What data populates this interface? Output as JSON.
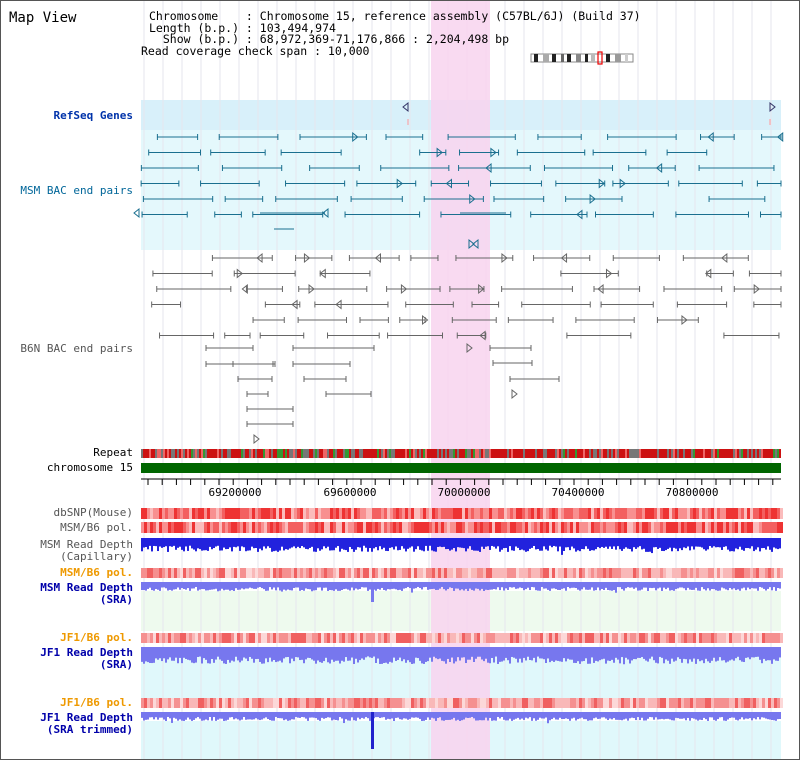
{
  "title": "Map View",
  "info": {
    "chromosome": "Chromosome    : Chromosome 15, reference assembly (C57BL/6J) (Build 37)",
    "length": "Length (b.p.) : 103,494,974",
    "show": "  Show (b.p.) : 68,972,369-71,176,866 : 2,204,498 bp",
    "coverage": "Read coverage check span : 10,000"
  },
  "tracks": {
    "refseq": "RefSeq Genes",
    "msm_bac": "MSM BAC end pairs",
    "b6n_bac": "B6N BAC end pairs",
    "repeat": "Repeat",
    "chromosome": "chromosome 15",
    "dbsnp": "dbSNP(Mouse)",
    "msm_b6_pol": "MSM/B6 pol.",
    "msm_depth_cap": "MSM Read Depth\n(Capillary)",
    "msm_b6_pol2": "MSM/B6 pol.",
    "msm_depth_sra": "MSM Read Depth\n(SRA)",
    "jf1_b6_pol": "JF1/B6 pol.",
    "jf1_depth_sra": "JF1 Read Depth\n(SRA)",
    "jf1_b6_pol2": "JF1/B6 pol.",
    "jf1_depth_trim": "JF1 Read Depth\n(SRA trimmed)"
  },
  "axis_ticks": [
    "69200000",
    "69600000",
    "70000000",
    "70400000",
    "70800000"
  ],
  "colors": {
    "refseq_label": "#0033aa",
    "msm_label": "#006699",
    "gray_label": "#555555",
    "orange_label": "#ee9900",
    "blue_label": "#0000aa",
    "highlight": "#f8d8f0",
    "chromosome_bar": "#006600"
  }
}
